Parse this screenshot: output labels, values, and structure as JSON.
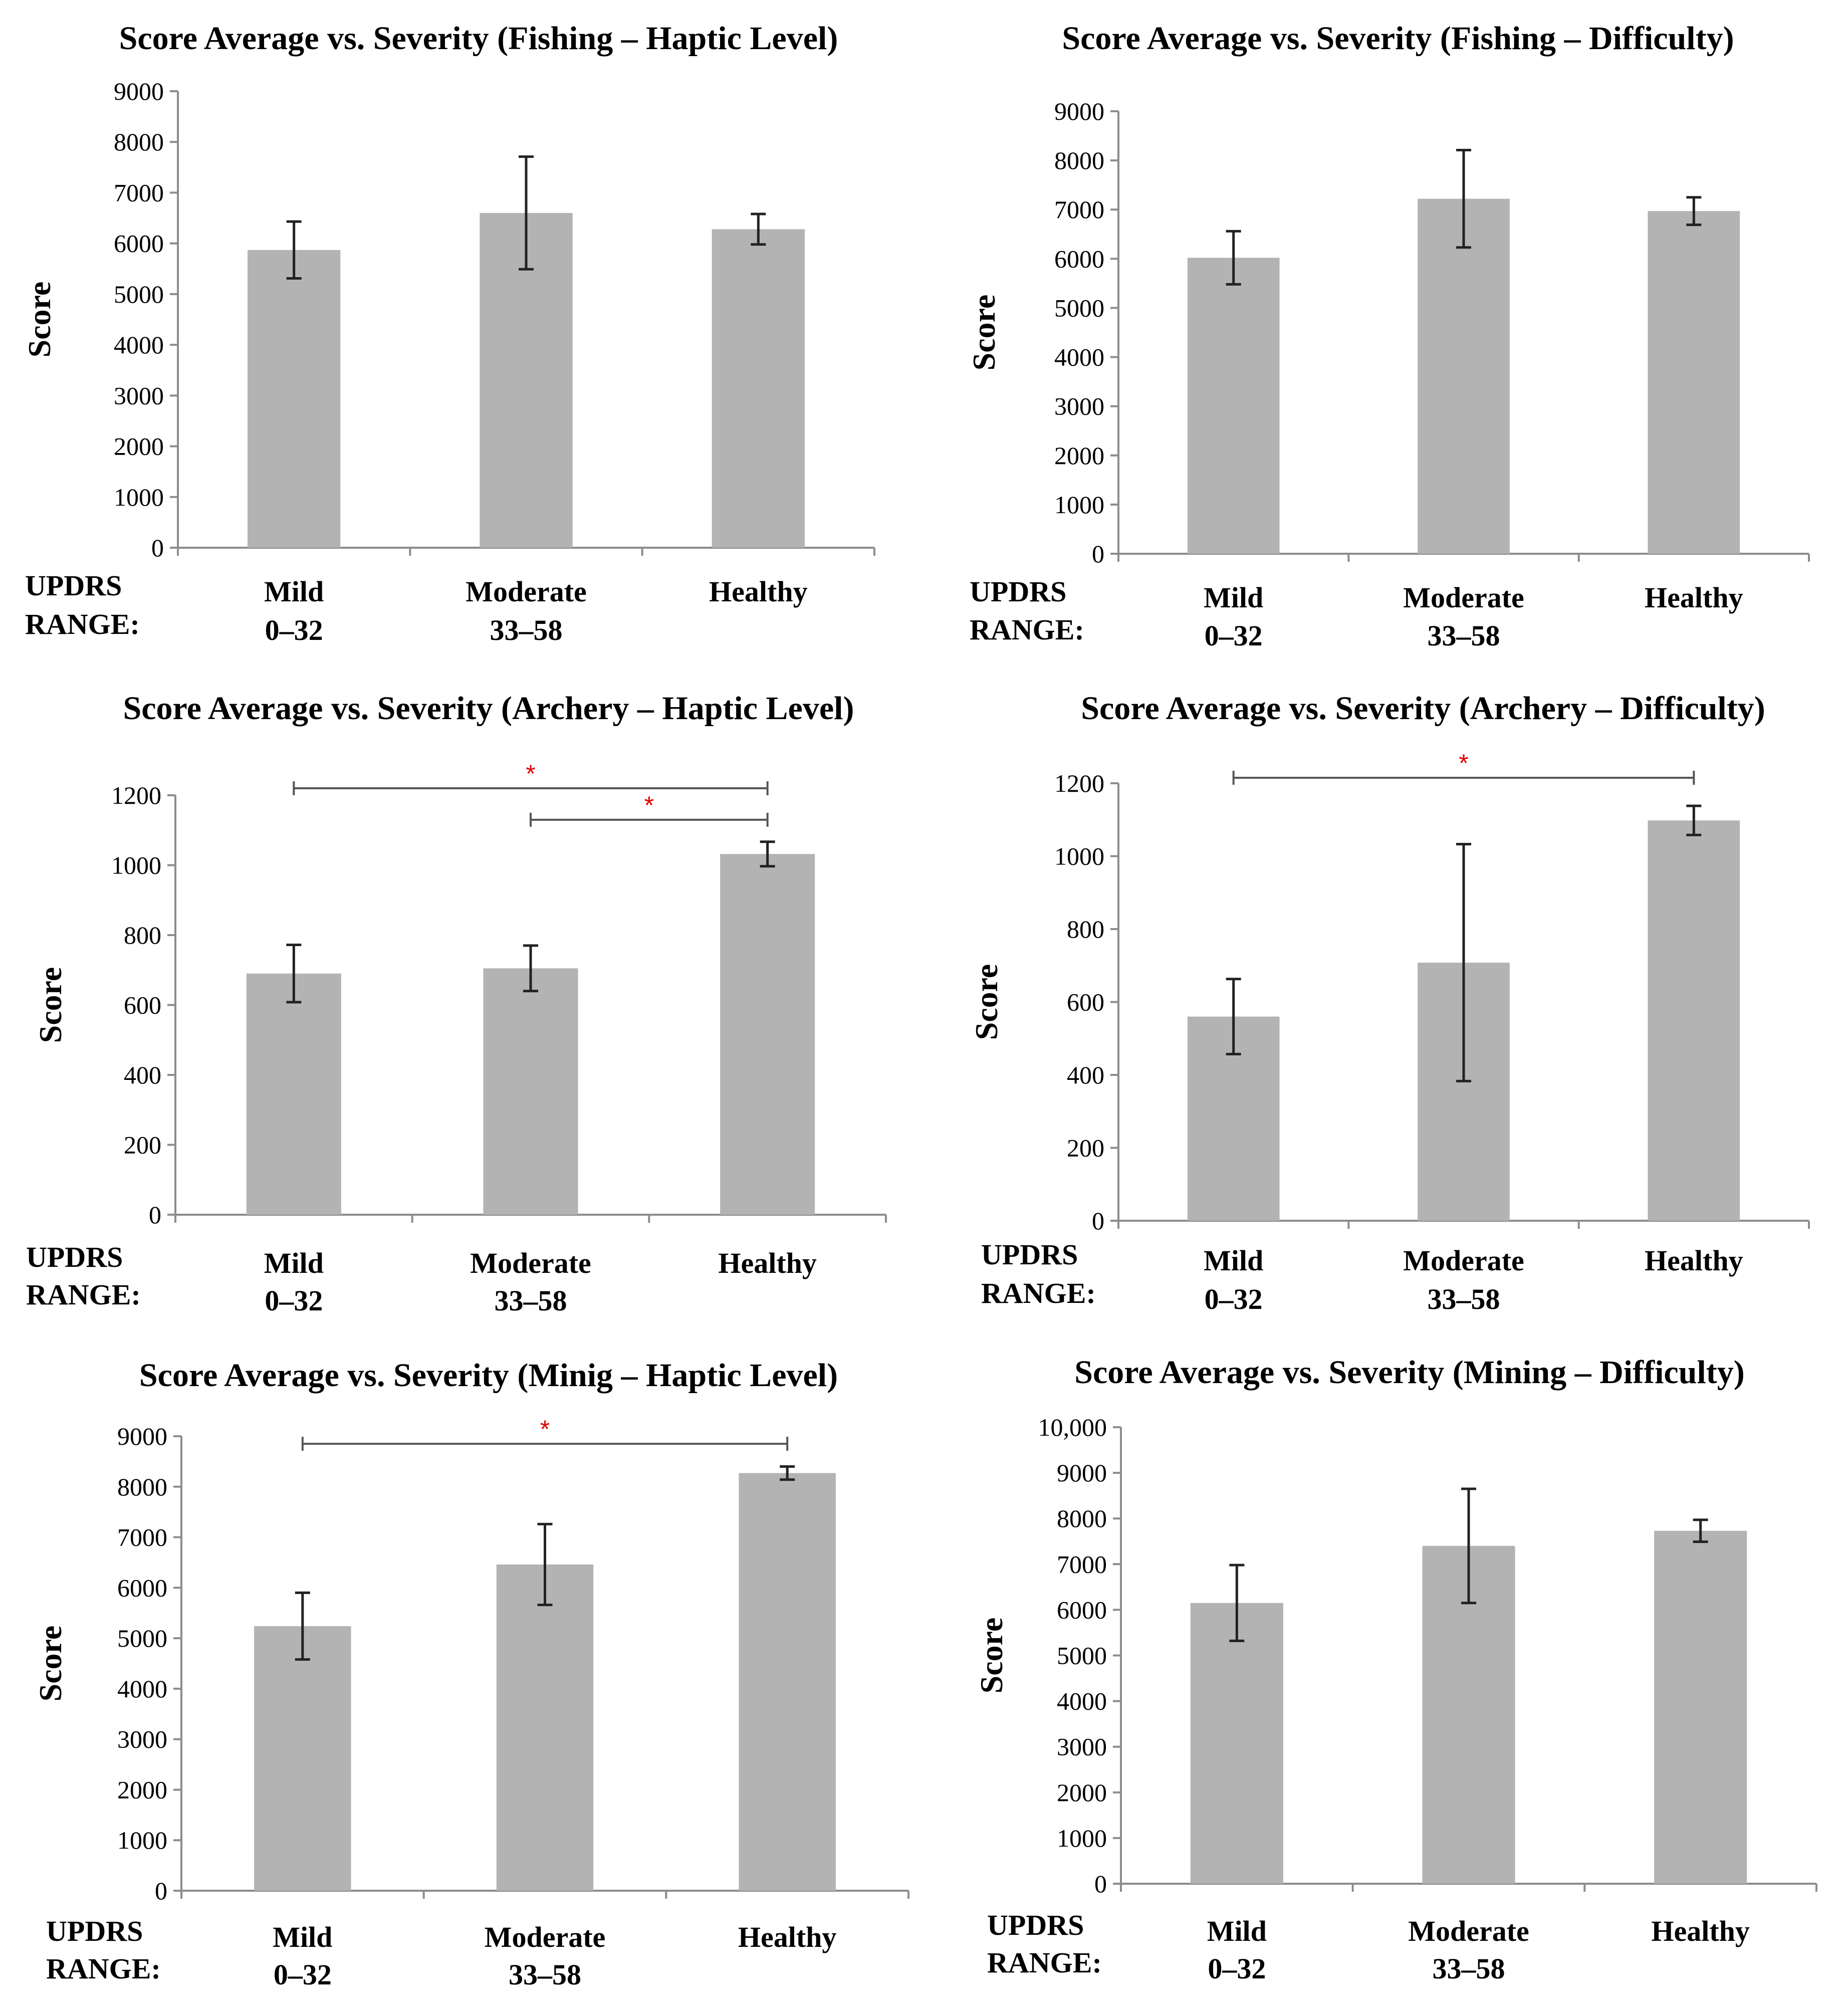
{
  "figure": {
    "updrs_line1": "UPDRS",
    "updrs_line2": "RANGE:",
    "colors": {
      "bar": "#b3b3b3",
      "axis": "#8c8c8c",
      "error": "#222222",
      "significance_star": "#e00000"
    }
  },
  "chart_data": [
    {
      "type": "bar",
      "title": "Score Average vs. Severity (Fishing – Haptic Level)",
      "ylabel": "Score",
      "xlabel": "UPDRS RANGE:",
      "ylim": [
        0,
        9000
      ],
      "yticks": [
        "0",
        "1000",
        "2000",
        "3000",
        "4000",
        "5000",
        "6000",
        "7000",
        "8000",
        "9000"
      ],
      "categories": [
        "Mild",
        "Moderate",
        "Healthy"
      ],
      "category_ranges": [
        "0–32",
        "33–58",
        ""
      ],
      "values": [
        5870,
        6600,
        6280
      ],
      "errors": [
        560,
        1110,
        300
      ],
      "significance": []
    },
    {
      "type": "bar",
      "title": "Score Average vs. Severity (Fishing – Difficulty)",
      "ylabel": "Score",
      "xlabel": "UPDRS RANGE:",
      "ylim": [
        0,
        9000
      ],
      "yticks": [
        "0",
        "1000",
        "2000",
        "3000",
        "4000",
        "5000",
        "6000",
        "7000",
        "8000",
        "9000"
      ],
      "categories": [
        "Mild",
        "Moderate",
        "Healthy"
      ],
      "category_ranges": [
        "0–32",
        "33–58",
        ""
      ],
      "values": [
        6020,
        7220,
        6970
      ],
      "errors": [
        540,
        990,
        280
      ],
      "significance": []
    },
    {
      "type": "bar",
      "title": "Score Average vs. Severity (Archery – Haptic Level)",
      "ylabel": "Score",
      "xlabel": "UPDRS RANGE:",
      "ylim": [
        0,
        1200
      ],
      "yticks": [
        "0",
        "200",
        "400",
        "600",
        "800",
        "1000",
        "1200"
      ],
      "categories": [
        "Mild",
        "Moderate",
        "Healthy"
      ],
      "category_ranges": [
        "0–32",
        "33–58",
        ""
      ],
      "values": [
        690,
        705,
        1032
      ],
      "errors": [
        82,
        65,
        35
      ],
      "significance": [
        {
          "from": 0,
          "to": 2,
          "y": 1220,
          "label": "*"
        },
        {
          "from": 1,
          "to": 2,
          "y": 1130,
          "label": "*"
        }
      ]
    },
    {
      "type": "bar",
      "title": "Score Average vs. Severity (Archery – Difficulty)",
      "ylabel": "Score",
      "xlabel": "UPDRS RANGE:",
      "ylim": [
        0,
        1200
      ],
      "yticks": [
        "0",
        "200",
        "400",
        "600",
        "800",
        "1000",
        "1200"
      ],
      "categories": [
        "Mild",
        "Moderate",
        "Healthy"
      ],
      "category_ranges": [
        "0–32",
        "33–58",
        ""
      ],
      "values": [
        560,
        708,
        1098
      ],
      "errors": [
        103,
        325,
        40
      ],
      "significance": [
        {
          "from": 0,
          "to": 2,
          "y": 1215,
          "label": "*"
        }
      ]
    },
    {
      "type": "bar",
      "title": "Score Average vs. Severity (Minig – Haptic Level)",
      "ylabel": "Score",
      "xlabel": "UPDRS RANGE:",
      "ylim": [
        0,
        9000
      ],
      "yticks": [
        "0",
        "1000",
        "2000",
        "3000",
        "4000",
        "5000",
        "6000",
        "7000",
        "8000",
        "9000"
      ],
      "categories": [
        "Mild",
        "Moderate",
        "Healthy"
      ],
      "category_ranges": [
        "0–32",
        "33–58",
        ""
      ],
      "values": [
        5240,
        6460,
        8270
      ],
      "errors": [
        660,
        800,
        130
      ],
      "significance": [
        {
          "from": 0,
          "to": 2,
          "y": 8850,
          "label": "*"
        }
      ]
    },
    {
      "type": "bar",
      "title": "Score Average vs. Severity (Mining – Difficulty)",
      "ylabel": "Score",
      "xlabel": "UPDRS RANGE:",
      "ylim": [
        0,
        10000
      ],
      "yticks": [
        "0",
        "1000",
        "2000",
        "3000",
        "4000",
        "5000",
        "6000",
        "7000",
        "8000",
        "9000",
        "10,000"
      ],
      "categories": [
        "Mild",
        "Moderate",
        "Healthy"
      ],
      "category_ranges": [
        "0–32",
        "33–58",
        ""
      ],
      "values": [
        6150,
        7400,
        7730
      ],
      "errors": [
        830,
        1250,
        240
      ],
      "significance": []
    }
  ]
}
